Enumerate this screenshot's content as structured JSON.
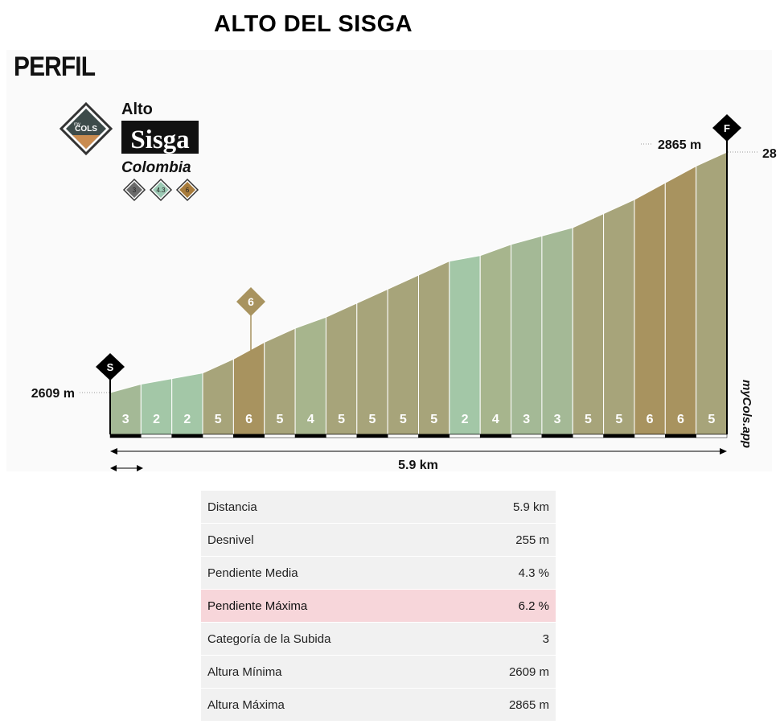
{
  "page_title": "ALTO DEL SISGA",
  "section_label": "PERFIL",
  "badge": {
    "logo_text": "COLS",
    "logo_prefix": "my",
    "name_prefix": "Alto",
    "name": "Sisga",
    "country": "Colombia",
    "chips": [
      {
        "text": "3",
        "color": "#6b6b6b"
      },
      {
        "text": "4.3",
        "color": "#9cc9b4"
      },
      {
        "text": "6",
        "color": "#a87c3c"
      }
    ]
  },
  "watermark": "myCols.app",
  "chart_data": {
    "type": "area",
    "distance_km": 5.9,
    "segment_gradients": [
      3,
      2,
      2,
      5,
      6,
      5,
      4,
      5,
      5,
      5,
      5,
      2,
      4,
      3,
      3,
      5,
      5,
      6,
      6,
      5
    ],
    "min_altitude_m": 2609,
    "max_altitude_m": 2865,
    "start_marker": "S",
    "finish_marker": "F",
    "max_gradient_marker": "6",
    "min_label": "2609 m",
    "max_label": "2865 m",
    "max_label_cut": "28",
    "distance_label": "5.9 km",
    "gradient_colors": {
      "2": "#a3c7a7",
      "3": "#a4b996",
      "4": "#a7b58d",
      "5": "#a7a47a",
      "6": "#a8935f"
    }
  },
  "stats": [
    {
      "label": "Distancia",
      "value": "5.9 km",
      "highlight": false
    },
    {
      "label": "Desnivel",
      "value": "255 m",
      "highlight": false
    },
    {
      "label": "Pendiente Media",
      "value": "4.3 %",
      "highlight": false
    },
    {
      "label": "Pendiente Máxima",
      "value": "6.2 %",
      "highlight": true
    },
    {
      "label": "Categoría de la Subida",
      "value": "3",
      "highlight": false
    },
    {
      "label": "Altura Mínima",
      "value": "2609 m",
      "highlight": false
    },
    {
      "label": "Altura Máxima",
      "value": "2865 m",
      "highlight": false
    }
  ]
}
